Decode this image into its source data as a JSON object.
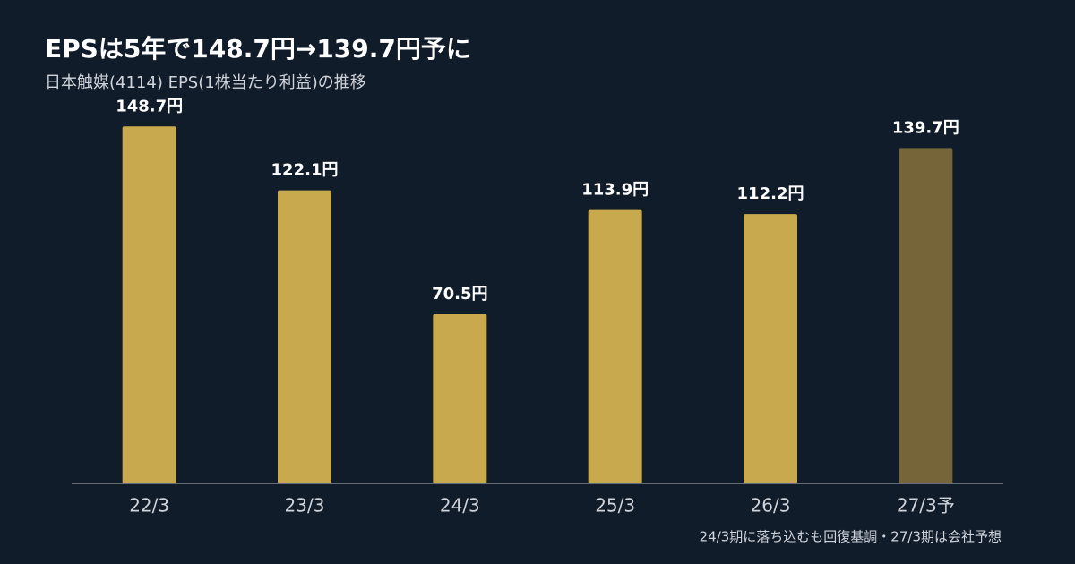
{
  "chart_data": {
    "type": "bar",
    "title": "EPSは5年で148.7円→139.7円予に",
    "subtitle": "日本触媒(4114) EPS(1株当たり利益)の推移",
    "annotation": "24/3期に落ち込むも回復基調・27/3期は会社予想",
    "categories": [
      "22/3",
      "23/3",
      "24/3",
      "25/3",
      "26/3",
      "27/3予"
    ],
    "values": [
      148.7,
      122.1,
      70.5,
      113.9,
      112.2,
      139.7
    ],
    "value_labels": [
      "148.7円",
      "122.1円",
      "70.5円",
      "113.9円",
      "112.2円",
      "139.7円"
    ],
    "colors": [
      "#c9a94d",
      "#c9a94d",
      "#c9a94d",
      "#c9a94d",
      "#c9a94d",
      "#756538"
    ],
    "ylim": [
      0,
      160
    ]
  }
}
